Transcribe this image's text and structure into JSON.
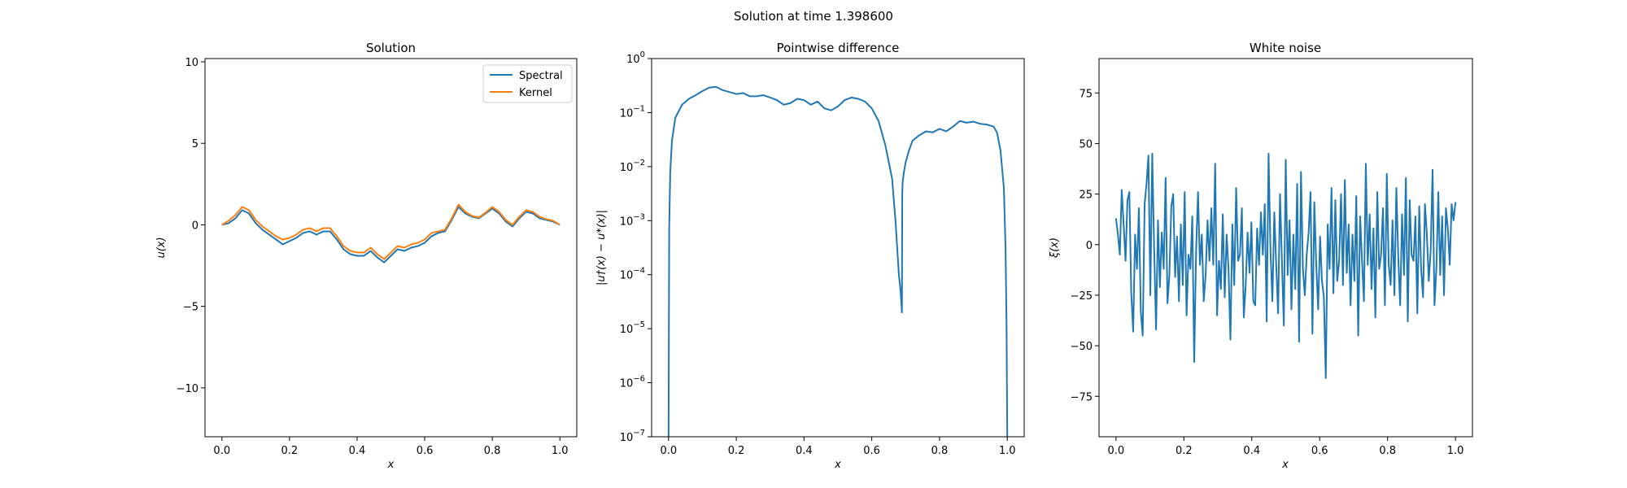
{
  "figure": {
    "suptitle": "Solution at time 1.398600"
  },
  "colors": {
    "spectral": "#1f77b4",
    "kernel": "#ff7f0e",
    "noise": "#1f77b4",
    "axes": "#000000"
  },
  "chart_data": [
    {
      "type": "line",
      "title": "Solution",
      "xlabel": "x",
      "ylabel": "u(x)",
      "xlim": [
        -0.05,
        1.05
      ],
      "ylim": [
        -13.0,
        10.2
      ],
      "xticks": [
        0.0,
        0.2,
        0.4,
        0.6,
        0.8,
        1.0
      ],
      "xtick_labels": [
        "0.0",
        "0.2",
        "0.4",
        "0.6",
        "0.8",
        "1.0"
      ],
      "yticks": [
        10,
        5,
        0,
        -5,
        -10
      ],
      "ytick_labels": [
        "10",
        "5",
        "0",
        "−5",
        "−10"
      ],
      "legend": {
        "placement": "upper-right",
        "entries": [
          "Spectral",
          "Kernel"
        ]
      },
      "grid": false,
      "series": [
        {
          "name": "Spectral",
          "x": [
            0.0,
            0.02,
            0.04,
            0.06,
            0.08,
            0.1,
            0.12,
            0.14,
            0.16,
            0.18,
            0.2,
            0.22,
            0.24,
            0.26,
            0.28,
            0.3,
            0.32,
            0.34,
            0.36,
            0.38,
            0.4,
            0.42,
            0.44,
            0.46,
            0.48,
            0.5,
            0.52,
            0.54,
            0.56,
            0.58,
            0.6,
            0.62,
            0.64,
            0.66,
            0.68,
            0.7,
            0.72,
            0.74,
            0.76,
            0.78,
            0.8,
            0.82,
            0.84,
            0.86,
            0.88,
            0.9,
            0.92,
            0.94,
            0.96,
            0.98,
            1.0
          ],
          "y": [
            0.0,
            0.1,
            0.4,
            0.9,
            0.7,
            0.1,
            -0.3,
            -0.6,
            -0.9,
            -1.2,
            -1.0,
            -0.8,
            -0.5,
            -0.4,
            -0.6,
            -0.4,
            -0.4,
            -0.9,
            -1.5,
            -1.8,
            -1.9,
            -1.9,
            -1.6,
            -2.0,
            -2.3,
            -1.9,
            -1.5,
            -1.6,
            -1.4,
            -1.3,
            -1.1,
            -0.7,
            -0.5,
            -0.4,
            0.3,
            1.1,
            0.7,
            0.5,
            0.4,
            0.7,
            1.0,
            0.7,
            0.2,
            -0.1,
            0.4,
            0.8,
            0.7,
            0.4,
            0.3,
            0.2,
            0.0
          ]
        },
        {
          "name": "Kernel",
          "x": [
            0.0,
            0.02,
            0.04,
            0.06,
            0.08,
            0.1,
            0.12,
            0.14,
            0.16,
            0.18,
            0.2,
            0.22,
            0.24,
            0.26,
            0.28,
            0.3,
            0.32,
            0.34,
            0.36,
            0.38,
            0.4,
            0.42,
            0.44,
            0.46,
            0.48,
            0.5,
            0.52,
            0.54,
            0.56,
            0.58,
            0.6,
            0.62,
            0.64,
            0.66,
            0.68,
            0.7,
            0.72,
            0.74,
            0.76,
            0.78,
            0.8,
            0.82,
            0.84,
            0.86,
            0.88,
            0.9,
            0.92,
            0.94,
            0.96,
            0.98,
            1.0
          ],
          "y": [
            0.0,
            0.25,
            0.6,
            1.1,
            0.9,
            0.3,
            -0.1,
            -0.4,
            -0.7,
            -0.9,
            -0.8,
            -0.6,
            -0.3,
            -0.2,
            -0.4,
            -0.2,
            -0.2,
            -0.7,
            -1.3,
            -1.6,
            -1.7,
            -1.7,
            -1.4,
            -1.8,
            -2.1,
            -1.7,
            -1.3,
            -1.4,
            -1.2,
            -1.1,
            -0.9,
            -0.5,
            -0.4,
            -0.3,
            0.4,
            1.25,
            0.8,
            0.55,
            0.45,
            0.75,
            1.1,
            0.8,
            0.3,
            0.0,
            0.5,
            0.9,
            0.8,
            0.5,
            0.35,
            0.25,
            0.0
          ]
        }
      ]
    },
    {
      "type": "line",
      "title": "Pointwise difference",
      "xlabel": "x",
      "ylabel": "|u†(x) − u*(x)|",
      "yscale": "log",
      "xlim": [
        -0.05,
        1.05
      ],
      "ylim": [
        1e-07,
        1
      ],
      "xticks": [
        0.0,
        0.2,
        0.4,
        0.6,
        0.8,
        1.0
      ],
      "xtick_labels": [
        "0.0",
        "0.2",
        "0.4",
        "0.6",
        "0.8",
        "1.0"
      ],
      "yticks": [
        1,
        0.1,
        0.01,
        0.001,
        0.0001,
        1e-05,
        1e-06,
        1e-07
      ],
      "ytick_base": "10",
      "ytick_exponents": [
        "0",
        "−1",
        "−2",
        "−3",
        "−4",
        "−5",
        "−6",
        "−7"
      ],
      "grid": false,
      "series": [
        {
          "x": [
            0.0,
            0.002,
            0.005,
            0.01,
            0.02,
            0.04,
            0.06,
            0.08,
            0.1,
            0.12,
            0.14,
            0.16,
            0.18,
            0.2,
            0.22,
            0.24,
            0.26,
            0.28,
            0.3,
            0.32,
            0.34,
            0.36,
            0.38,
            0.4,
            0.42,
            0.44,
            0.46,
            0.48,
            0.5,
            0.52,
            0.54,
            0.56,
            0.58,
            0.6,
            0.62,
            0.64,
            0.66,
            0.67,
            0.68,
            0.685,
            0.689,
            0.69,
            0.691,
            0.695,
            0.7,
            0.71,
            0.72,
            0.74,
            0.76,
            0.78,
            0.8,
            0.82,
            0.84,
            0.86,
            0.88,
            0.9,
            0.92,
            0.94,
            0.96,
            0.97,
            0.98,
            0.99,
            0.995,
            0.998,
            1.0
          ],
          "y": [
            1e-07,
            0.0008,
            0.008,
            0.03,
            0.08,
            0.14,
            0.18,
            0.21,
            0.25,
            0.29,
            0.3,
            0.26,
            0.24,
            0.22,
            0.23,
            0.2,
            0.2,
            0.21,
            0.19,
            0.17,
            0.14,
            0.15,
            0.18,
            0.17,
            0.14,
            0.16,
            0.12,
            0.11,
            0.13,
            0.17,
            0.19,
            0.18,
            0.16,
            0.12,
            0.07,
            0.025,
            0.006,
            0.001,
            0.0001,
            5e-05,
            2e-05,
            0.003,
            0.005,
            0.008,
            0.012,
            0.02,
            0.03,
            0.038,
            0.045,
            0.043,
            0.05,
            0.045,
            0.055,
            0.07,
            0.065,
            0.068,
            0.062,
            0.06,
            0.055,
            0.042,
            0.02,
            0.004,
            0.0003,
            1e-05,
            1e-07
          ]
        }
      ]
    },
    {
      "type": "line",
      "title": "White noise",
      "xlabel": "x",
      "ylabel": "ξ(x)",
      "xlim": [
        -0.05,
        1.05
      ],
      "ylim": [
        -95,
        92
      ],
      "xticks": [
        0.0,
        0.2,
        0.4,
        0.6,
        0.8,
        1.0
      ],
      "xtick_labels": [
        "0.0",
        "0.2",
        "0.4",
        "0.6",
        "0.8",
        "1.0"
      ],
      "yticks": [
        75,
        50,
        25,
        0,
        -25,
        -50,
        -75
      ],
      "ytick_labels": [
        "75",
        "50",
        "25",
        "0",
        "−25",
        "−50",
        "−75"
      ],
      "grid": false,
      "series": [
        {
          "x_start": 0.0,
          "x_end": 1.0,
          "y": [
            13,
            5,
            -5,
            27,
            10,
            -8,
            22,
            26,
            -24,
            -43,
            5,
            -12,
            18,
            -33,
            -45,
            20,
            30,
            44,
            -25,
            45,
            -2,
            -42,
            12,
            -21,
            6,
            -12,
            33,
            -29,
            -15,
            19,
            25,
            -16,
            4,
            -28,
            10,
            -20,
            26,
            -35,
            -5,
            -12,
            14,
            -58,
            -3,
            26,
            -10,
            5,
            -28,
            -15,
            12,
            -8,
            18,
            -10,
            40,
            -35,
            -8,
            -22,
            15,
            -26,
            5,
            -12,
            -47,
            10,
            -20,
            28,
            -8,
            -5,
            18,
            -36,
            -20,
            6,
            -14,
            11,
            -28,
            -30,
            8,
            -10,
            16,
            -5,
            20,
            -38,
            45,
            -3,
            -28,
            16,
            -10,
            -34,
            25,
            -8,
            -40,
            42,
            -15,
            12,
            -32,
            5,
            -22,
            30,
            -48,
            36,
            -12,
            -25,
            -5,
            6,
            26,
            -44,
            21,
            -10,
            -32,
            4,
            -18,
            -26,
            -66,
            10,
            -12,
            28,
            -24,
            22,
            -18,
            -8,
            25,
            -20,
            32,
            -14,
            10,
            -30,
            5,
            -18,
            24,
            -45,
            14,
            -8,
            -28,
            40,
            -10,
            15,
            -22,
            8,
            -36,
            26,
            -12,
            -5,
            18,
            -30,
            35,
            -10,
            -20,
            12,
            -25,
            28,
            -6,
            -30,
            15,
            -15,
            33,
            -38,
            22,
            -5,
            -8,
            14,
            -34,
            19,
            -12,
            -26,
            20,
            5,
            -18,
            -3,
            37,
            -30,
            -12,
            26,
            -15,
            14,
            -25,
            18,
            8,
            -10,
            20,
            12,
            21
          ]
        }
      ]
    }
  ]
}
